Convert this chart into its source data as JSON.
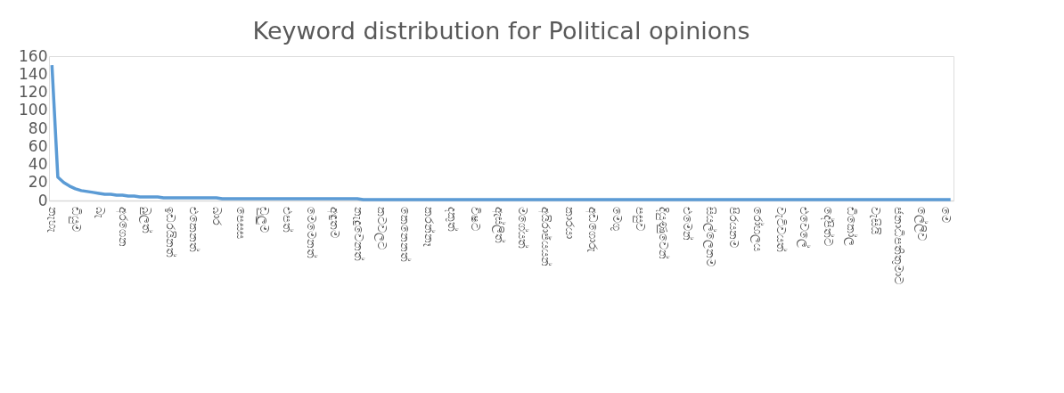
{
  "chart_data": {
    "type": "line",
    "title": "Keyword distribution for Political opinions",
    "categories": [
      "නැහැ",
      null,
      null,
      null,
      "ඩියුම",
      null,
      null,
      null,
      "බැ",
      null,
      null,
      null,
      "අරගෙන",
      null,
      null,
      null,
      "බුලත්",
      null,
      null,
      null,
      "ඉඩරයිනත්",
      null,
      null,
      null,
      "එකෙනත්",
      null,
      null,
      null,
      "බාර",
      null,
      null,
      null,
      "පෙසස",
      null,
      null,
      null,
      "ඩුලුම",
      null,
      null,
      null,
      "එපත්",
      null,
      null,
      null,
      "මෙමෙනත්",
      null,
      null,
      null,
      "අඳුතම",
      null,
      null,
      null,
      "නැදුවෙනත්",
      null,
      null,
      null,
      "කටවලට",
      null,
      null,
      null,
      "කෙනෙනත්",
      null,
      null,
      null,
      "කරන්නෑ",
      null,
      null,
      null,
      "දකුත්",
      null,
      null,
      null,
      "විෂට",
      null,
      null,
      null,
      "ඇස්ලිත්",
      null,
      null,
      null,
      "මගේයත්",
      null,
      null,
      null,
      "අයිරාජ්යයන්",
      null,
      null,
      null,
      "කාරයා",
      null,
      null,
      null,
      "අඩගොරු",
      null,
      null,
      null,
      "මෙගු",
      null,
      null,
      null,
      "පසුව",
      null,
      null,
      null,
      "දියුණුවෙන්",
      null,
      null,
      null,
      "එමෙන්",
      null,
      null,
      null,
      "සියල්ලෙනම",
      null,
      null,
      null,
      "පිරයනම",
      null,
      null,
      null,
      "රෝහලය",
      null,
      null,
      null,
      "වැටිවයත්",
      null,
      null,
      null,
      "එවෙලේ",
      null,
      null,
      null,
      "දේපිත්ට",
      null,
      null,
      null,
      "ඩිකෝල",
      null,
      null,
      null,
      "වැසියි",
      null,
      null,
      null,
      "ජනාධිපතිතුමාට",
      null,
      null,
      null,
      "ලේලිව",
      null,
      null,
      null,
      "මෙ",
      null
    ],
    "values": [
      150,
      26,
      20,
      16,
      13,
      11,
      10,
      9,
      8,
      7,
      7,
      6,
      6,
      5,
      5,
      4,
      4,
      4,
      4,
      3,
      3,
      3,
      3,
      3,
      3,
      3,
      3,
      3,
      3,
      2,
      2,
      2,
      2,
      2,
      2,
      2,
      2,
      2,
      2,
      2,
      2,
      2,
      2,
      2,
      2,
      2,
      2,
      2,
      2,
      2,
      2,
      2,
      2,
      1,
      1,
      1,
      1,
      1,
      1,
      1,
      1,
      1,
      1,
      1,
      1,
      1,
      1,
      1,
      1,
      1,
      1,
      1,
      1,
      1,
      1,
      1,
      1,
      1,
      1,
      1,
      1,
      1,
      1,
      1,
      1,
      1,
      1,
      1,
      1,
      1,
      1,
      1,
      1,
      1,
      1,
      1,
      1,
      1,
      1,
      1,
      1,
      1,
      1,
      1,
      1,
      1,
      1,
      1,
      1,
      1,
      1,
      1,
      1,
      1,
      1,
      1,
      1,
      1,
      1,
      1,
      1,
      1,
      1,
      1,
      1,
      1,
      1,
      1,
      1,
      1,
      1,
      1,
      1,
      1,
      1,
      1,
      1,
      1,
      1,
      1,
      1,
      1,
      1,
      1,
      1,
      1,
      1,
      1,
      1,
      1,
      1,
      1,
      1,
      1
    ],
    "color": "#5b9bd5",
    "ylim": [
      0,
      160
    ],
    "yticks": [
      0,
      20,
      40,
      60,
      80,
      100,
      120,
      140,
      160
    ],
    "grid": false,
    "marker": "none",
    "line_style": "solid"
  }
}
